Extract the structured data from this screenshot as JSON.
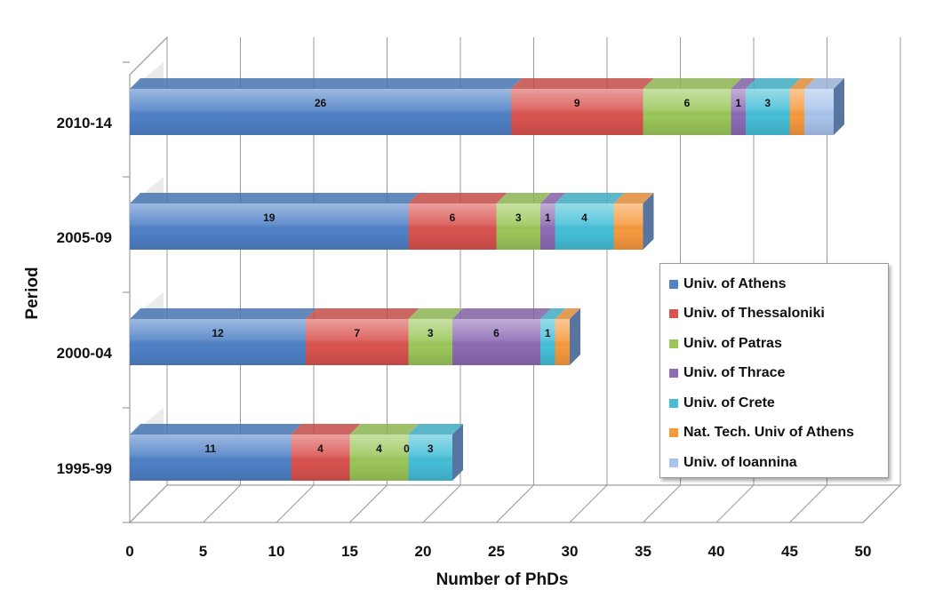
{
  "chart_data": {
    "type": "bar",
    "orientation": "horizontal",
    "stacked": true,
    "three_d": true,
    "categories": [
      "1995-99",
      "2000-04",
      "2005-09",
      "2010-14"
    ],
    "series": [
      {
        "name": "Univ. of Athens",
        "color": "#4f81c7",
        "values": [
          11,
          12,
          19,
          26
        ],
        "labels": [
          "11",
          "12",
          "19",
          "26"
        ]
      },
      {
        "name": "Univ. of Thessaloniki",
        "color": "#d9534f",
        "values": [
          4,
          7,
          6,
          9
        ],
        "labels": [
          "4",
          "7",
          "6",
          "9"
        ]
      },
      {
        "name": "Univ. of Patras",
        "color": "#9bc75a",
        "values": [
          4,
          3,
          3,
          6
        ],
        "labels": [
          "4",
          "3",
          "3",
          "6"
        ]
      },
      {
        "name": "Univ. of Thrace",
        "color": "#8e6bb5",
        "values": [
          0,
          6,
          1,
          1
        ],
        "labels": [
          "0",
          "6",
          "1",
          "1"
        ]
      },
      {
        "name": "Univ. of Crete",
        "color": "#45bfd8",
        "values": [
          3,
          1,
          4,
          3
        ],
        "labels": [
          "3",
          "1",
          "4",
          "3"
        ]
      },
      {
        "name": "Nat. Tech. Univ of Athens",
        "color": "#f79a3e",
        "values": [
          0,
          1,
          2,
          1
        ],
        "labels": [
          "",
          "",
          "",
          ""
        ]
      },
      {
        "name": "Univ. of Ioannina",
        "color": "#a9c4ec",
        "values": [
          0,
          0,
          0,
          2
        ],
        "labels": [
          "",
          "",
          "",
          ""
        ]
      }
    ],
    "xlabel": "Number of PhDs",
    "ylabel": "Period",
    "xlim": [
      0,
      50
    ],
    "xticks": [
      "0",
      "5",
      "10",
      "15",
      "20",
      "25",
      "30",
      "35",
      "40",
      "45",
      "50"
    ],
    "grid": true,
    "legend": {
      "position": "right"
    }
  }
}
